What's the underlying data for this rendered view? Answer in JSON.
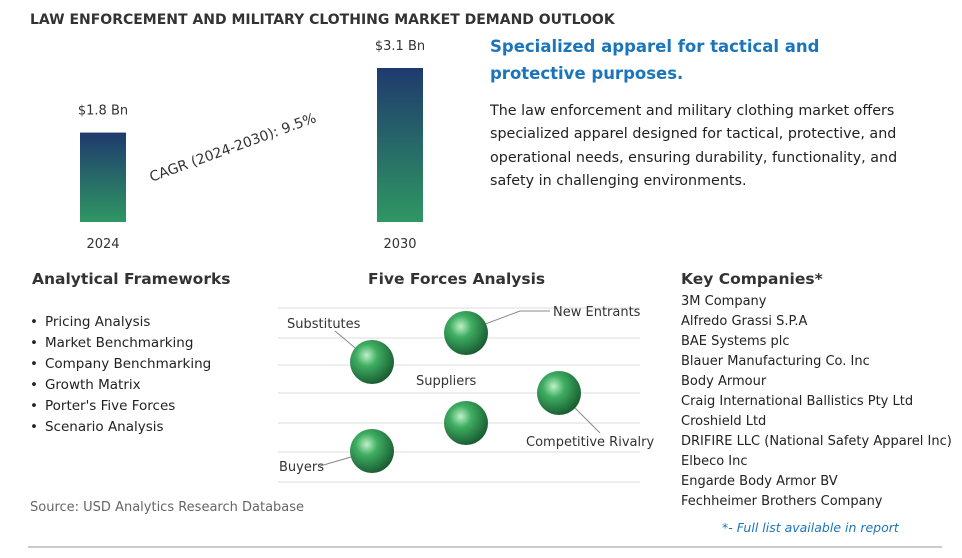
{
  "title": "LAW ENFORCEMENT AND MILITARY CLOTHING MARKET DEMAND OUTLOOK",
  "chart_data": {
    "type": "bar",
    "categories": [
      "2024",
      "2030"
    ],
    "values": [
      1.8,
      3.1
    ],
    "value_labels": [
      "$1.8 Bn",
      "$3.1 Bn"
    ],
    "annotation": "CAGR (2024-2030):  9.5%"
  },
  "description": {
    "heading": "Specialized apparel for tactical and protective purposes.",
    "text": "The law enforcement and military clothing market offers specialized apparel designed for tactical, protective, and operational needs, ensuring durability, functionality, and safety in challenging environments."
  },
  "frameworks": {
    "heading": "Analytical Frameworks",
    "items": [
      "Pricing Analysis",
      "Market Benchmarking",
      "Company Benchmarking",
      "Growth Matrix",
      "Porter's Five Forces",
      "Scenario Analysis"
    ]
  },
  "five_forces": {
    "heading": "Five Forces Analysis",
    "labels": [
      "Substitutes",
      "New Entrants",
      "Suppliers",
      "Competitive Rivalry",
      "Buyers"
    ]
  },
  "companies": {
    "heading": "Key Companies*",
    "items": [
      "3M Company",
      "Alfredo Grassi S.P.A",
      "BAE Systems plc",
      "Blauer Manufacturing Co. Inc",
      "Body Armour",
      "Craig International Ballistics Pty Ltd",
      "Croshield Ltd",
      "DRIFIRE LLC (National Safety Apparel Inc)",
      "Elbeco Inc",
      "Engarde Body Armor BV",
      "Fechheimer Brothers Company"
    ],
    "note": "*- Full list available in report"
  },
  "source": "Source: USD Analytics Research Database"
}
